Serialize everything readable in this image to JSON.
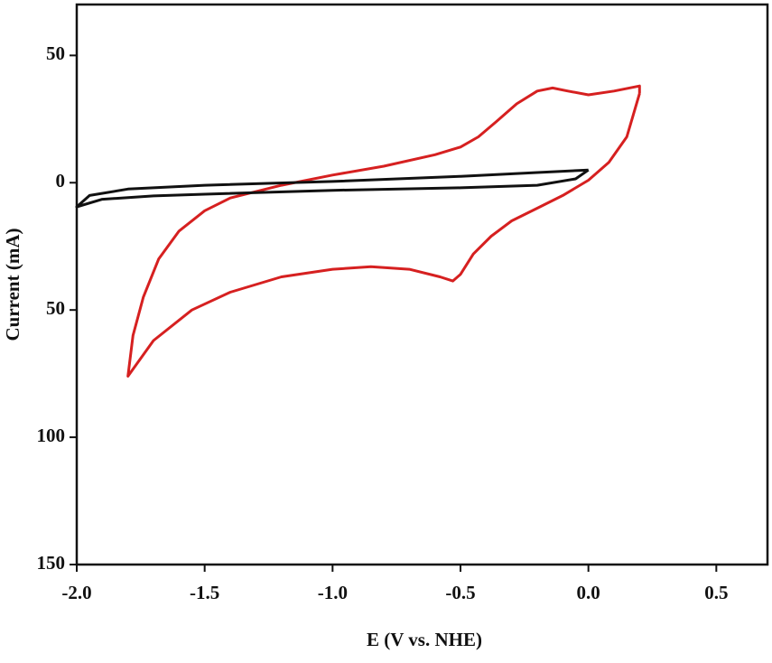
{
  "chart_data": {
    "type": "line",
    "x_label": "E (V vs. NHE)",
    "y_label": "Current (mA)",
    "xlim": [
      -2.0,
      0.7
    ],
    "ylim": [
      -150,
      70
    ],
    "xticks": [
      {
        "value": -2.0,
        "label": "-2.0"
      },
      {
        "value": -1.5,
        "label": "-1.5"
      },
      {
        "value": -1.0,
        "label": "-1.0"
      },
      {
        "value": -0.5,
        "label": "-0.5"
      },
      {
        "value": 0.0,
        "label": "0.0"
      },
      0.5
    ],
    "yticks": [
      {
        "value": 50,
        "label": "50"
      },
      0,
      {
        "value": -50,
        "label": "50"
      },
      {
        "value": -100,
        "label": "100"
      },
      {
        "value": -150,
        "label": "150"
      }
    ],
    "series": [
      {
        "color": "#d62020",
        "x": [
          0.2,
          0.15,
          0.08,
          0.0,
          -0.1,
          -0.2,
          -0.3,
          -0.38,
          -0.45,
          -0.5,
          -0.53,
          -0.58,
          -0.7,
          -0.85,
          -1.0,
          -1.2,
          -1.4,
          -1.55,
          -1.7,
          -1.8,
          -1.78,
          -1.74,
          -1.68,
          -1.6,
          -1.5,
          -1.4,
          -1.2,
          -1.0,
          -0.8,
          -0.6,
          -0.5,
          -0.43,
          -0.36,
          -0.28,
          -0.2,
          -0.14,
          -0.08,
          0.0,
          0.1,
          0.2,
          0.2
        ],
        "values": [
          35,
          18,
          8,
          1,
          -5,
          -10,
          -15,
          -21,
          -28,
          -36,
          -38.6,
          -37,
          -34,
          -33,
          -34,
          -37,
          -43,
          -50,
          -62,
          -76,
          -60,
          -45,
          -30,
          -19,
          -11,
          -6,
          -1,
          3,
          6.5,
          11,
          14,
          18,
          24,
          31,
          36,
          37.2,
          36,
          34.5,
          36,
          38,
          35
        ]
      },
      {
        "color": "#111111",
        "x": [
          0.0,
          -0.2,
          -0.5,
          -1.0,
          -1.5,
          -1.8,
          -1.95,
          -2.0,
          -1.9,
          -1.7,
          -1.5,
          -1.0,
          -0.5,
          -0.2,
          -0.05,
          0.0
        ],
        "values": [
          5,
          4,
          2.5,
          0.5,
          -1,
          -2.5,
          -5,
          -9.5,
          -6.5,
          -5.2,
          -4.5,
          -3,
          -2,
          -1,
          1.5,
          5
        ]
      }
    ]
  }
}
